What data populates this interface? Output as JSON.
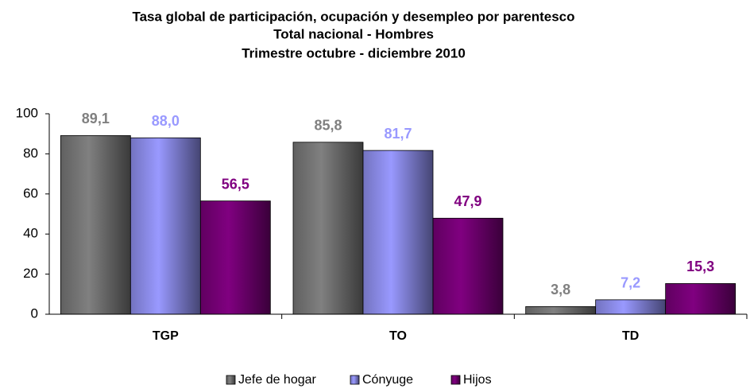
{
  "chart_data": {
    "type": "bar",
    "title": [
      "Tasa global de participación, ocupación y desempleo por parentesco",
      "Total nacional - Hombres",
      "Trimestre octubre - diciembre 2010"
    ],
    "categories": [
      "TGP",
      "TO",
      "TD"
    ],
    "series": [
      {
        "name": "Jefe de hogar",
        "color": "#808080",
        "values": [
          89.1,
          85.8,
          3.8
        ],
        "value_labels": [
          "89,1",
          "85,8",
          "3,8"
        ]
      },
      {
        "name": "Cónyuge",
        "color": "#9999ff",
        "values": [
          88.0,
          81.7,
          7.2
        ],
        "value_labels": [
          "88,0",
          "81,7",
          "7,2"
        ]
      },
      {
        "name": "Hijos",
        "color": "#800080",
        "values": [
          56.5,
          47.9,
          15.3
        ],
        "value_labels": [
          "56,5",
          "47,9",
          "15,3"
        ]
      }
    ],
    "ylim": [
      0,
      100
    ],
    "yticks": [
      0,
      20,
      40,
      60,
      80,
      100
    ],
    "grid": false,
    "legend": "bottom"
  }
}
